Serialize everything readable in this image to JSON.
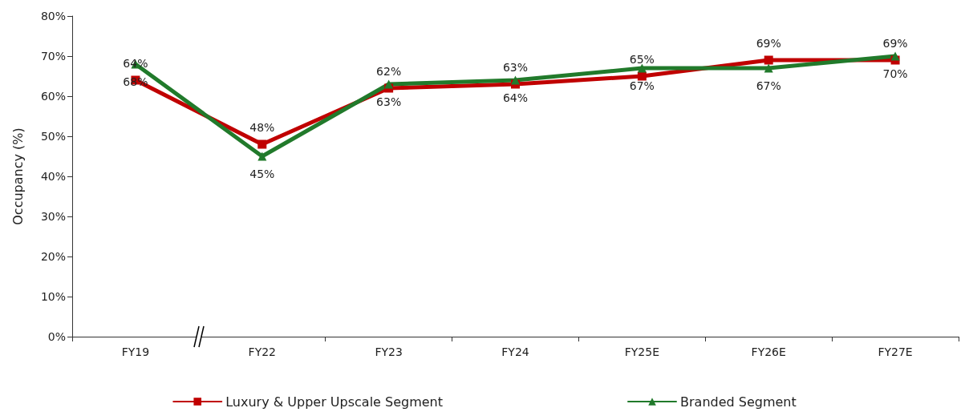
{
  "chart_data": {
    "type": "line",
    "ylabel": "Occupancy (%)",
    "categories": [
      "FY19",
      "FY22",
      "FY23",
      "FY24",
      "FY25E",
      "FY26E",
      "FY27E"
    ],
    "series": [
      {
        "name": "Luxury & Upper Upscale Segment",
        "color": "#c00000",
        "marker": "square",
        "values": [
          64,
          48,
          62,
          63,
          65,
          69,
          69
        ],
        "value_labels": [
          "64%",
          "48%",
          "62%",
          "63%",
          "65%",
          "69%",
          "69%"
        ]
      },
      {
        "name": "Branded Segment",
        "color": "#217a2b",
        "marker": "triangle",
        "values": [
          68,
          45,
          63,
          64,
          67,
          67,
          70
        ],
        "value_labels": [
          "68%",
          "45%",
          "63%",
          "64%",
          "67%",
          "67%",
          "70%"
        ]
      }
    ],
    "ylim": [
      0,
      80
    ],
    "yticks": [
      {
        "value": 0,
        "label": "0%"
      },
      {
        "value": 10,
        "label": "10%"
      },
      {
        "value": 20,
        "label": "20%"
      },
      {
        "value": 30,
        "label": "30%"
      },
      {
        "value": 40,
        "label": "40%"
      },
      {
        "value": 50,
        "label": "50%"
      },
      {
        "value": 60,
        "label": "60%"
      },
      {
        "value": 70,
        "label": "70%"
      },
      {
        "value": 80,
        "label": "80%"
      }
    ],
    "grid": false,
    "legend": "bottom",
    "line_style": "solid"
  }
}
